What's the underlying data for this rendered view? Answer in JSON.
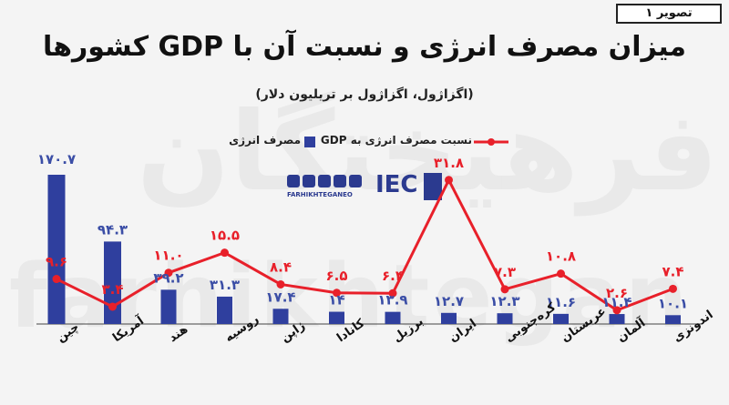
{
  "figure_label": "تصویر ۱",
  "colors": {
    "bar": "#2f3f9e",
    "line": "#e8202a",
    "value_bar": "#3b4ea6",
    "value_line": "#e8202a"
  },
  "watermark": {
    "fa": "فرهیختگان",
    "en": "farhikhtegan"
  },
  "logo": {
    "handle": "FARHIKHTEGANEO",
    "brand": "IEC",
    "icons": [
      "telegram-icon",
      "x-icon",
      "instagram-icon",
      "youtube-icon",
      "eitaa-icon"
    ]
  },
  "chart_data": {
    "type": "bar",
    "title": "میزان مصرف انرژی و نسبت آن با GDP کشورها",
    "subtitle": "(اگزاژول، اگزاژول بر تریلیون دلار)",
    "categories": [
      "چین",
      "آمریکا",
      "هند",
      "روسیه",
      "ژاپن",
      "کانادا",
      "برزیل",
      "ایران",
      "کره‌جنوبی",
      "عربستان",
      "آلمان",
      "اندونزی"
    ],
    "series": [
      {
        "name": "مصرف انرژی",
        "kind": "bar",
        "values": [
          170.7,
          94.3,
          39.2,
          31.3,
          17.4,
          14.0,
          13.9,
          12.7,
          12.3,
          11.6,
          11.4,
          10.1
        ],
        "labels": [
          "۱۷۰.۷",
          "۹۴.۳",
          "۳۹.۲",
          "۳۱.۳",
          "۱۷.۴",
          "۱۴",
          "۱۳.۹",
          "۱۲.۷",
          "۱۲.۳",
          "۱۱.۶",
          "۱۱.۴",
          "۱۰.۱"
        ]
      },
      {
        "name": "نسبت مصرف انرژی به GDP",
        "kind": "line",
        "values": [
          9.6,
          3.4,
          11.0,
          15.5,
          8.4,
          6.5,
          6.4,
          31.8,
          7.3,
          10.8,
          2.6,
          7.4
        ],
        "labels": [
          "۹.۶",
          "۳.۴",
          "۱۱.۰",
          "۱۵.۵",
          "۸.۴",
          "۶.۵",
          "۶.۴",
          "۳۱.۸",
          "۷.۳",
          "۱۰.۸",
          "۲.۶",
          "۷.۴"
        ]
      }
    ],
    "legend_position": "top",
    "grid": false
  }
}
